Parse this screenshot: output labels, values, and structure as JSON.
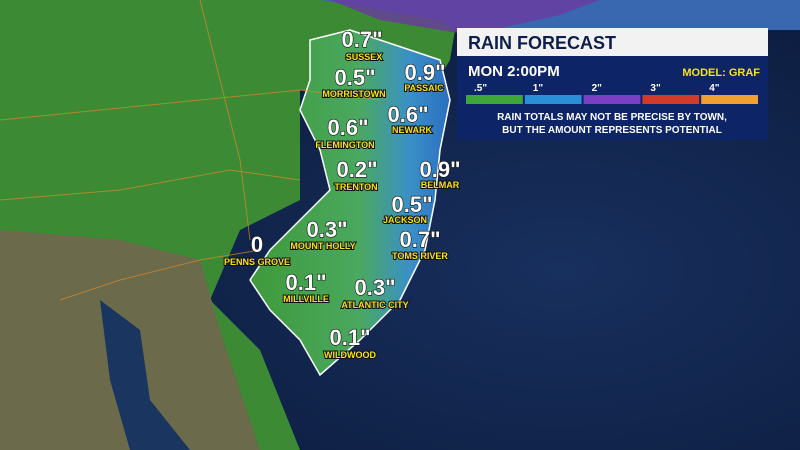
{
  "panel": {
    "title": "RAIN FORECAST",
    "time": "MON 2:00PM",
    "model": "MODEL: GRAF",
    "legend": [
      {
        "label": ".5\"",
        "color": "#3fa63a"
      },
      {
        "label": "1\"",
        "color": "#2a8fd6"
      },
      {
        "label": "2\"",
        "color": "#7a3fc4"
      },
      {
        "label": "3\"",
        "color": "#d23a2a"
      },
      {
        "label": "4\"",
        "color": "#f0a030"
      }
    ],
    "note": [
      "RAIN TOTALS MAY NOT BE PRECISE BY TOWN,",
      "BUT THE AMOUNT REPRESENTS POTENTIAL"
    ]
  },
  "towns": [
    {
      "name": "SUSSEX",
      "value": "0.7\""
    },
    {
      "name": "MORRISTOWN",
      "value": "0.5\""
    },
    {
      "name": "PASSAIC",
      "value": "0.9\""
    },
    {
      "name": "NEWARK",
      "value": "0.6\""
    },
    {
      "name": "FLEMINGTON",
      "value": "0.6\""
    },
    {
      "name": "TRENTON",
      "value": "0.2\""
    },
    {
      "name": "BELMAR",
      "value": "0.9\""
    },
    {
      "name": "JACKSON",
      "value": "0.5\""
    },
    {
      "name": "MOUNT HOLLY",
      "value": "0.3\""
    },
    {
      "name": "TOMS RIVER",
      "value": "0.7\""
    },
    {
      "name": "PENNS GROVE",
      "value": "0"
    },
    {
      "name": "MILLVILLE",
      "value": "0.1\""
    },
    {
      "name": "ATLANTIC CITY",
      "value": "0.3\""
    },
    {
      "name": "WILDWOOD",
      "value": "0.1\""
    }
  ]
}
